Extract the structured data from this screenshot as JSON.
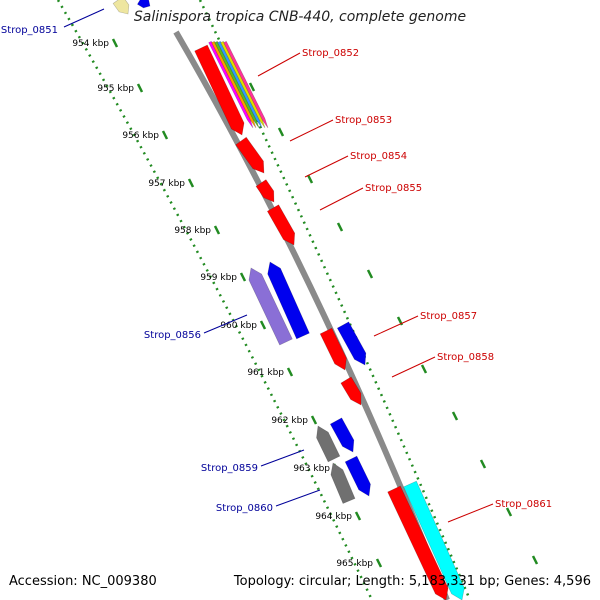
{
  "title": "Salinispora tropica CNB-440, complete genome",
  "footer": {
    "accession": "Accession: NC_009380",
    "topology": "Topology: circular; Length: 5,183,331 bp; Genes: 4,596"
  },
  "ticks": [
    "954 kbp",
    "955 kbp",
    "956 kbp",
    "957 kbp",
    "958 kbp",
    "959 kbp",
    "960 kbp",
    "961 kbp",
    "962 kbp",
    "963 kbp",
    "964 kbp",
    "965 kbp"
  ],
  "colors": {
    "forward_label": "#cc0000",
    "reverse_label": "#000099",
    "backbone": "#888888",
    "ruler": "#228b22",
    "gene_red": "#ff0000",
    "gene_blue": "#0000ee",
    "gene_purple": "#8a6fd6",
    "gene_gray": "#707070",
    "gene_cyan": "#00ffff",
    "gene_khaki": "#eee6a0"
  },
  "genes": [
    {
      "label": "Strop_0851",
      "strand": "reverse"
    },
    {
      "label": "Strop_0852",
      "strand": "forward"
    },
    {
      "label": "Strop_0853",
      "strand": "forward"
    },
    {
      "label": "Strop_0854",
      "strand": "forward"
    },
    {
      "label": "Strop_0855",
      "strand": "forward"
    },
    {
      "label": "Strop_0856",
      "strand": "reverse"
    },
    {
      "label": "Strop_0857",
      "strand": "forward"
    },
    {
      "label": "Strop_0858",
      "strand": "forward"
    },
    {
      "label": "Strop_0859",
      "strand": "reverse"
    },
    {
      "label": "Strop_0860",
      "strand": "reverse"
    },
    {
      "label": "Strop_0861",
      "strand": "forward"
    }
  ]
}
